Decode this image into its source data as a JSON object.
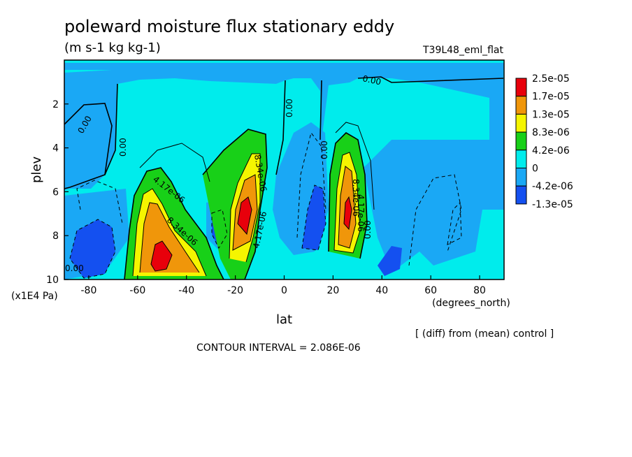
{
  "chart_data": {
    "type": "heatmap",
    "title": "poleward moisture flux stationary eddy",
    "units": "(m s-1 kg kg-1)",
    "run_label": "T39L48_eml_flat",
    "xlabel": "lat",
    "x_units": "(degrees_north)",
    "ylabel": "plev",
    "y_units": "(x1E4 Pa)",
    "xlim": [
      -90,
      90
    ],
    "ylim": [
      10,
      0
    ],
    "x_ticks": [
      -80,
      -60,
      -40,
      -20,
      0,
      20,
      40,
      60,
      80
    ],
    "y_ticks": [
      2,
      4,
      6,
      8,
      10
    ],
    "colorbar": {
      "labels": [
        "2.5e-05",
        "1.7e-05",
        "1.3e-05",
        "8.3e-06",
        "4.2e-06",
        "0",
        "-4.2e-06",
        "-1.3e-05"
      ],
      "colors": [
        "#e8000b",
        "#f0960a",
        "#f5f500",
        "#18d018",
        "#00ecec",
        "#1aa8f5",
        "#1450f0"
      ]
    },
    "contour_interval": "CONTOUR INTERVAL = 2.086E-06",
    "note": "[ (diff) from (mean) control ]",
    "contour_labels": [
      "0.00",
      "0.00",
      "0.00",
      "0.00",
      "0.00",
      "0.00",
      "0.00",
      "4.17e-06",
      "8.34e-06",
      "8.34e-06",
      "4.17e-06",
      "4.17e-06",
      "8.34e-06"
    ],
    "features": [
      {
        "name": "SH max",
        "lat": -52,
        "plev": 9.1,
        "level": "2.5e-05"
      },
      {
        "name": "subtropical SH max",
        "lat": -16,
        "plev": 7.0,
        "level": "2.5e-05"
      },
      {
        "name": "NH max",
        "lat": 25,
        "plev": 7.0,
        "level": "2.5e-05"
      },
      {
        "name": "SH min",
        "lat": -75,
        "plev": 9.0,
        "level": "-1.3e-05"
      },
      {
        "name": "tropical min",
        "lat": 14,
        "plev": 8.0,
        "level": "-1.3e-05"
      }
    ]
  }
}
